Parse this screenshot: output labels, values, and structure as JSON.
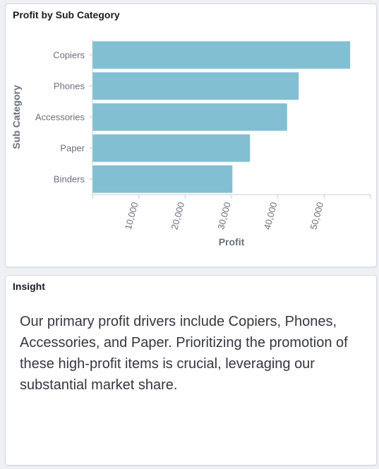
{
  "chart_panel": {
    "title": "Profit by Sub Category"
  },
  "insight_panel": {
    "title": "Insight",
    "text": "Our primary profit drivers include Copiers, Phones, Accessories, and Paper. Prioritizing the promotion of these high-profit items is crucial, leveraging our substantial market share."
  },
  "chart_data": {
    "type": "bar",
    "orientation": "horizontal",
    "categories": [
      "Copiers",
      "Phones",
      "Accessories",
      "Paper",
      "Binders"
    ],
    "values": [
      55600,
      44500,
      42000,
      34000,
      30200
    ],
    "xlabel": "Profit",
    "ylabel": "Sub Category",
    "xlim": [
      0,
      60000
    ],
    "xticks": [
      10000,
      20000,
      30000,
      40000,
      50000
    ],
    "xtick_labels": [
      "10,000",
      "20,000",
      "30,000",
      "40,000",
      "50,000"
    ],
    "bar_color": "#82bfd3",
    "grid": false
  }
}
